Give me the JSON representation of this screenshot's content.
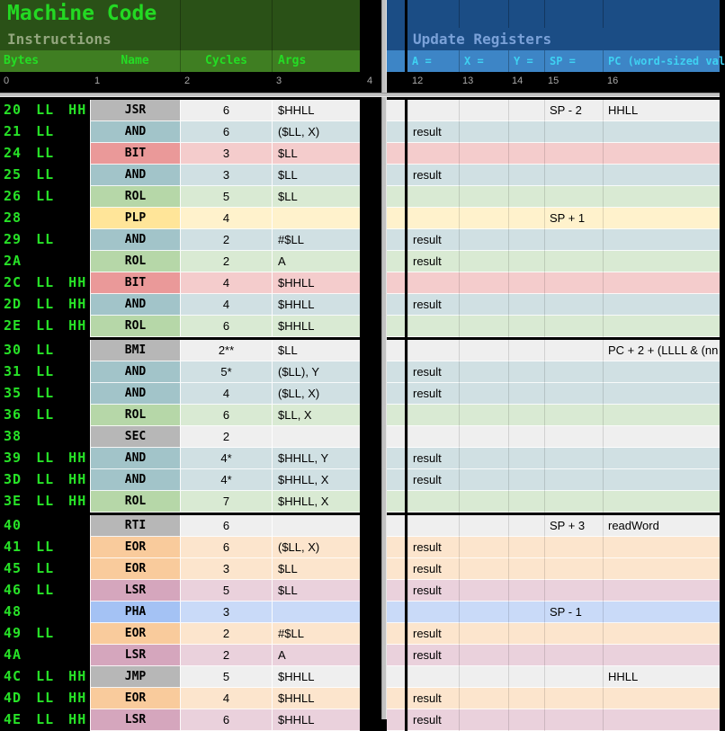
{
  "left_header": {
    "title": "Machine Code",
    "subtitle": "Instructions",
    "columns": [
      "Bytes",
      "Name",
      "Cycles",
      "Args"
    ],
    "ruler": [
      "0",
      "1",
      "2",
      "3",
      "4"
    ]
  },
  "right_header": {
    "title": "Update Registers",
    "columns": [
      "A =",
      "X =",
      "Y =",
      "SP =",
      "PC (word-sized val"
    ],
    "ruler": [
      "12",
      "13",
      "14",
      "15",
      "16"
    ]
  },
  "colors": {
    "left_band_dark": "#2a5117",
    "left_band_mid": "#3f7e22",
    "left_title_green": "#23d923",
    "bytes_green": "#27e227",
    "right_band_dark": "#1b4d85",
    "right_band_mid": "#3d85c6",
    "right_label_cyan": "#3ed1f2"
  },
  "palette": {
    "gray": {
      "name_bg": "#b7b7b7",
      "light_bg": "#efefef"
    },
    "cyan": {
      "name_bg": "#a2c4c9",
      "light_bg": "#d0e0e3"
    },
    "red": {
      "name_bg": "#ea9999",
      "light_bg": "#f4cccc"
    },
    "green": {
      "name_bg": "#b6d7a8",
      "light_bg": "#d9ead3"
    },
    "yellow": {
      "name_bg": "#ffe599",
      "light_bg": "#fff2cc"
    },
    "orange": {
      "name_bg": "#f9cb9c",
      "light_bg": "#fce5cd"
    },
    "magenta": {
      "name_bg": "#d5a6bd",
      "light_bg": "#ead1dc"
    },
    "blue": {
      "name_bg": "#a4c2f4",
      "light_bg": "#c9daf8"
    }
  },
  "rows": [
    {
      "bytes": "20 LL HH",
      "name": "JSR",
      "cycles": "6",
      "args": "$HHLL",
      "color": "gray",
      "a": "",
      "x": "",
      "y": "",
      "sp": "SP - 2",
      "pc": "HHLL",
      "group_start": true
    },
    {
      "bytes": "21 LL",
      "name": "AND",
      "cycles": "6",
      "args": "($LL, X)",
      "color": "cyan",
      "a": "result",
      "x": "",
      "y": "",
      "sp": "",
      "pc": "",
      "group_start": false
    },
    {
      "bytes": "24 LL",
      "name": "BIT",
      "cycles": "3",
      "args": "$LL",
      "color": "red",
      "a": "",
      "x": "",
      "y": "",
      "sp": "",
      "pc": "",
      "group_start": false
    },
    {
      "bytes": "25 LL",
      "name": "AND",
      "cycles": "3",
      "args": "$LL",
      "color": "cyan",
      "a": "result",
      "x": "",
      "y": "",
      "sp": "",
      "pc": "",
      "group_start": false
    },
    {
      "bytes": "26 LL",
      "name": "ROL",
      "cycles": "5",
      "args": "$LL",
      "color": "green",
      "a": "",
      "x": "",
      "y": "",
      "sp": "",
      "pc": "",
      "group_start": false
    },
    {
      "bytes": "28",
      "name": "PLP",
      "cycles": "4",
      "args": "",
      "color": "yellow",
      "a": "",
      "x": "",
      "y": "",
      "sp": "SP + 1",
      "pc": "",
      "group_start": false
    },
    {
      "bytes": "29 LL",
      "name": "AND",
      "cycles": "2",
      "args": "#$LL",
      "color": "cyan",
      "a": "result",
      "x": "",
      "y": "",
      "sp": "",
      "pc": "",
      "group_start": false
    },
    {
      "bytes": "2A",
      "name": "ROL",
      "cycles": "2",
      "args": "A",
      "color": "green",
      "a": "result",
      "x": "",
      "y": "",
      "sp": "",
      "pc": "",
      "group_start": false
    },
    {
      "bytes": "2C LL HH",
      "name": "BIT",
      "cycles": "4",
      "args": "$HHLL",
      "color": "red",
      "a": "",
      "x": "",
      "y": "",
      "sp": "",
      "pc": "",
      "group_start": false
    },
    {
      "bytes": "2D LL HH",
      "name": "AND",
      "cycles": "4",
      "args": "$HHLL",
      "color": "cyan",
      "a": "result",
      "x": "",
      "y": "",
      "sp": "",
      "pc": "",
      "group_start": false
    },
    {
      "bytes": "2E LL HH",
      "name": "ROL",
      "cycles": "6",
      "args": "$HHLL",
      "color": "green",
      "a": "",
      "x": "",
      "y": "",
      "sp": "",
      "pc": "",
      "group_start": false
    },
    {
      "bytes": "30 LL",
      "name": "BMI",
      "cycles": "2**",
      "args": "$LL",
      "color": "gray",
      "a": "",
      "x": "",
      "y": "",
      "sp": "",
      "pc": "PC + 2 + (LLLL & (nn",
      "group_start": true
    },
    {
      "bytes": "31 LL",
      "name": "AND",
      "cycles": "5*",
      "args": "($LL), Y",
      "color": "cyan",
      "a": "result",
      "x": "",
      "y": "",
      "sp": "",
      "pc": "",
      "group_start": false
    },
    {
      "bytes": "35 LL",
      "name": "AND",
      "cycles": "4",
      "args": "($LL, X)",
      "color": "cyan",
      "a": "result",
      "x": "",
      "y": "",
      "sp": "",
      "pc": "",
      "group_start": false
    },
    {
      "bytes": "36 LL",
      "name": "ROL",
      "cycles": "6",
      "args": "$LL, X",
      "color": "green",
      "a": "",
      "x": "",
      "y": "",
      "sp": "",
      "pc": "",
      "group_start": false
    },
    {
      "bytes": "38",
      "name": "SEC",
      "cycles": "2",
      "args": "",
      "color": "gray",
      "a": "",
      "x": "",
      "y": "",
      "sp": "",
      "pc": "",
      "group_start": false
    },
    {
      "bytes": "39 LL HH",
      "name": "AND",
      "cycles": "4*",
      "args": "$HHLL, Y",
      "color": "cyan",
      "a": "result",
      "x": "",
      "y": "",
      "sp": "",
      "pc": "",
      "group_start": false
    },
    {
      "bytes": "3D LL HH",
      "name": "AND",
      "cycles": "4*",
      "args": "$HHLL, X",
      "color": "cyan",
      "a": "result",
      "x": "",
      "y": "",
      "sp": "",
      "pc": "",
      "group_start": false
    },
    {
      "bytes": "3E LL HH",
      "name": "ROL",
      "cycles": "7",
      "args": "$HHLL, X",
      "color": "green",
      "a": "",
      "x": "",
      "y": "",
      "sp": "",
      "pc": "",
      "group_start": false
    },
    {
      "bytes": "40",
      "name": "RTI",
      "cycles": "6",
      "args": "",
      "color": "gray",
      "a": "",
      "x": "",
      "y": "",
      "sp": "SP + 3",
      "pc": "readWord",
      "group_start": true
    },
    {
      "bytes": "41 LL",
      "name": "EOR",
      "cycles": "6",
      "args": "($LL, X)",
      "color": "orange",
      "a": "result",
      "x": "",
      "y": "",
      "sp": "",
      "pc": "",
      "group_start": false
    },
    {
      "bytes": "45 LL",
      "name": "EOR",
      "cycles": "3",
      "args": "$LL",
      "color": "orange",
      "a": "result",
      "x": "",
      "y": "",
      "sp": "",
      "pc": "",
      "group_start": false
    },
    {
      "bytes": "46 LL",
      "name": "LSR",
      "cycles": "5",
      "args": "$LL",
      "color": "magenta",
      "a": "result",
      "x": "",
      "y": "",
      "sp": "",
      "pc": "",
      "group_start": false
    },
    {
      "bytes": "48",
      "name": "PHA",
      "cycles": "3",
      "args": "",
      "color": "blue",
      "a": "",
      "x": "",
      "y": "",
      "sp": "SP - 1",
      "pc": "",
      "group_start": false
    },
    {
      "bytes": "49 LL",
      "name": "EOR",
      "cycles": "2",
      "args": "#$LL",
      "color": "orange",
      "a": "result",
      "x": "",
      "y": "",
      "sp": "",
      "pc": "",
      "group_start": false
    },
    {
      "bytes": "4A",
      "name": "LSR",
      "cycles": "2",
      "args": "A",
      "color": "magenta",
      "a": "result",
      "x": "",
      "y": "",
      "sp": "",
      "pc": "",
      "group_start": false
    },
    {
      "bytes": "4C LL HH",
      "name": "JMP",
      "cycles": "5",
      "args": "$HHLL",
      "color": "gray",
      "a": "",
      "x": "",
      "y": "",
      "sp": "",
      "pc": "HHLL",
      "group_start": false
    },
    {
      "bytes": "4D LL HH",
      "name": "EOR",
      "cycles": "4",
      "args": "$HHLL",
      "color": "orange",
      "a": "result",
      "x": "",
      "y": "",
      "sp": "",
      "pc": "",
      "group_start": false
    },
    {
      "bytes": "4E LL HH",
      "name": "LSR",
      "cycles": "6",
      "args": "$HHLL",
      "color": "magenta",
      "a": "result",
      "x": "",
      "y": "",
      "sp": "",
      "pc": "",
      "group_start": false
    }
  ]
}
